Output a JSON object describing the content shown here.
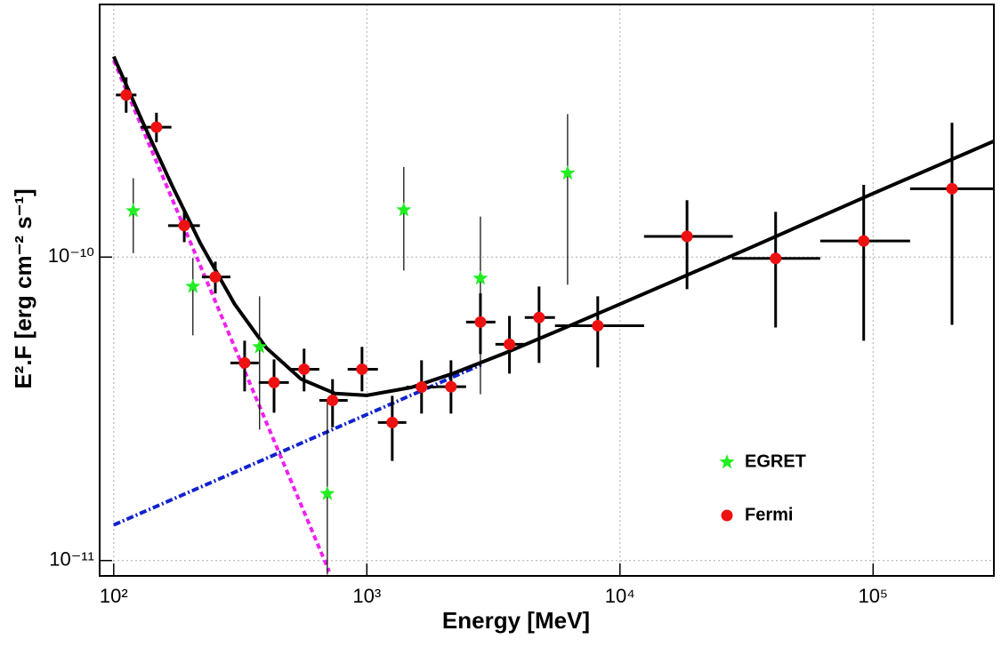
{
  "chart_data": {
    "type": "scatter",
    "x_label": "Energy [MeV]",
    "y_label": "E².F [erg cm⁻² s⁻¹]",
    "xscale": "log",
    "yscale": "log",
    "xlim": [
      88,
      300000
    ],
    "ylim": [
      8.9e-12,
      6.8e-10
    ],
    "xticks": [
      {
        "value": 100,
        "label": "10²"
      },
      {
        "value": 1000,
        "label": "10³"
      },
      {
        "value": 10000,
        "label": "10⁴"
      },
      {
        "value": 100000,
        "label": "10⁵"
      }
    ],
    "yticks": [
      {
        "value": 1e-11,
        "label": "10⁻¹¹"
      },
      {
        "value": 1e-10,
        "label": "10⁻¹⁰"
      }
    ],
    "grid": true,
    "legend": "lower right",
    "series": [
      {
        "name": "EGRET",
        "type": "scatter",
        "marker": "star",
        "color": "#22ee22",
        "error_color": "#000000",
        "x": [
          119.5,
          205.5,
          377,
          698,
          1400,
          2810,
          6210
        ],
        "values": [
          1.42e-10,
          8e-11,
          5.06e-11,
          1.66e-11,
          1.43e-10,
          8.51e-11,
          1.89e-10
        ],
        "ylo": [
          1.03e-10,
          5.52e-11,
          2.7e-11,
          9e-12,
          9.03e-11,
          3.53e-11,
          8.11e-11
        ],
        "yhi": [
          1.82e-10,
          9.93e-11,
          7.43e-11,
          3.37e-11,
          1.98e-10,
          1.36e-10,
          2.96e-10
        ]
      },
      {
        "name": "Fermi",
        "type": "scatter",
        "marker": "circle",
        "color": "#ee1111",
        "error_color": "#000000",
        "x": [
          112,
          147.5,
          190,
          252,
          329,
          430,
          565,
          732,
          957,
          1260,
          1645,
          2150,
          2810,
          3660,
          4790,
          8170,
          18400,
          41200,
          91800,
          205000
        ],
        "values": [
          3.42e-10,
          2.68e-10,
          1.27e-10,
          8.6e-11,
          4.48e-11,
          3.86e-11,
          4.27e-11,
          3.37e-11,
          4.27e-11,
          2.85e-11,
          3.73e-11,
          3.74e-11,
          6.11e-11,
          5.16e-11,
          6.32e-11,
          5.94e-11,
          1.17e-10,
          9.9e-11,
          1.13e-10,
          1.68e-10
        ],
        "xlo": [
          102,
          128,
          164,
          223,
          289,
          374,
          492,
          649,
          840,
          1106,
          1432,
          1888,
          2466,
          3221,
          4207,
          5536,
          12450,
          27700,
          61800,
          140000
        ],
        "xhi": [
          123,
          169,
          219,
          289,
          374,
          492,
          649,
          840,
          1106,
          1432,
          1888,
          2466,
          3221,
          4207,
          5536,
          12450,
          27900,
          61800,
          140000,
          300000
        ],
        "ylo": [
          2.99e-10,
          2.39e-10,
          1.12e-10,
          7.59e-11,
          3.61e-11,
          3.07e-11,
          3.61e-11,
          2.75e-11,
          3.61e-11,
          2.13e-11,
          3.05e-11,
          3.05e-11,
          4.79e-11,
          4.13e-11,
          4.48e-11,
          4.33e-11,
          7.84e-11,
          5.86e-11,
          5.3e-11,
          5.98e-11
        ],
        "yhi": [
          3.91e-10,
          2.99e-10,
          1.43e-10,
          9.66e-11,
          5.3e-11,
          4.6e-11,
          4.99e-11,
          3.96e-11,
          5.06e-11,
          3.49e-11,
          4.57e-11,
          4.57e-11,
          7.59e-11,
          6.4e-11,
          8e-11,
          7.43e-11,
          1.54e-10,
          1.41e-10,
          1.73e-10,
          2.77e-10
        ]
      },
      {
        "type": "line",
        "color": "#ee22ee",
        "dash": "6,4",
        "x": [
          100,
          710
        ],
        "values": [
          4.45e-10,
          9.2e-12
        ]
      },
      {
        "type": "line",
        "color": "#1122cc",
        "dash": "8,3,2,3",
        "x": [
          100,
          2830
        ],
        "values": [
          1.31e-11,
          4.42e-11
        ]
      },
      {
        "type": "line",
        "color": "#000000",
        "x": [
          100,
          130,
          170,
          220,
          300,
          400,
          550,
          750,
          1000,
          1500,
          2200,
          3500,
          6000,
          10000,
          30000,
          100000,
          300000
        ],
        "values": [
          4.58e-10,
          2.79e-10,
          1.72e-10,
          1.11e-10,
          7.01e-11,
          5.03e-11,
          3.96e-11,
          3.55e-11,
          3.5e-11,
          3.72e-11,
          4.14e-11,
          4.82e-11,
          5.83e-11,
          7e-11,
          1.04e-10,
          1.62e-10,
          2.41e-10
        ]
      }
    ]
  }
}
